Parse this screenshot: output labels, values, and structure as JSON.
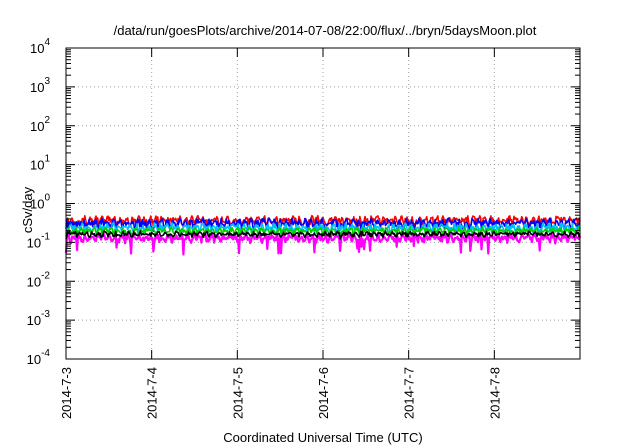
{
  "chart_data": {
    "type": "line",
    "title": "/data/run/goesPlots/archive/2014-07-08/22:00/flux/../bryn/5daysMoon.plot",
    "xlabel": "Coordinated Universal Time (UTC)",
    "ylabel": "cSv/day",
    "x_tick_labels": [
      "2014-7-3",
      "2014-7-4",
      "2014-7-5",
      "2014-7-6",
      "2014-7-7",
      "2014-7-8"
    ],
    "y_tick_labels": [
      {
        "base": "10",
        "exp": "4"
      },
      {
        "base": "10",
        "exp": "3"
      },
      {
        "base": "10",
        "exp": "2"
      },
      {
        "base": "10",
        "exp": "1"
      },
      {
        "base": "10",
        "exp": "0"
      },
      {
        "base": "10",
        "exp": "-1"
      },
      {
        "base": "10",
        "exp": "-2"
      },
      {
        "base": "10",
        "exp": "-3"
      },
      {
        "base": "10",
        "exp": "-4"
      }
    ],
    "xlim": [
      "2014-07-03",
      "2014-07-09"
    ],
    "ylim": [
      0.0001,
      10000
    ],
    "y_scale": "log",
    "grid": true,
    "series": [
      {
        "color": "#ff00ff",
        "base": 0.13,
        "amp": 0.025,
        "dip": 0.5
      },
      {
        "color": "#ff0000",
        "base": 0.37,
        "amp": 0.08,
        "dip": 0.8
      },
      {
        "color": "#0000ff",
        "base": 0.31,
        "amp": 0.07,
        "dip": 0.8
      },
      {
        "color": "#00bfff",
        "base": 0.24,
        "amp": 0.05,
        "dip": 0.85
      },
      {
        "color": "#00d000",
        "base": 0.2,
        "amp": 0.03,
        "dip": 0.9
      },
      {
        "color": "#000000",
        "base": 0.165,
        "amp": 0.02,
        "dip": 0.9
      }
    ]
  }
}
